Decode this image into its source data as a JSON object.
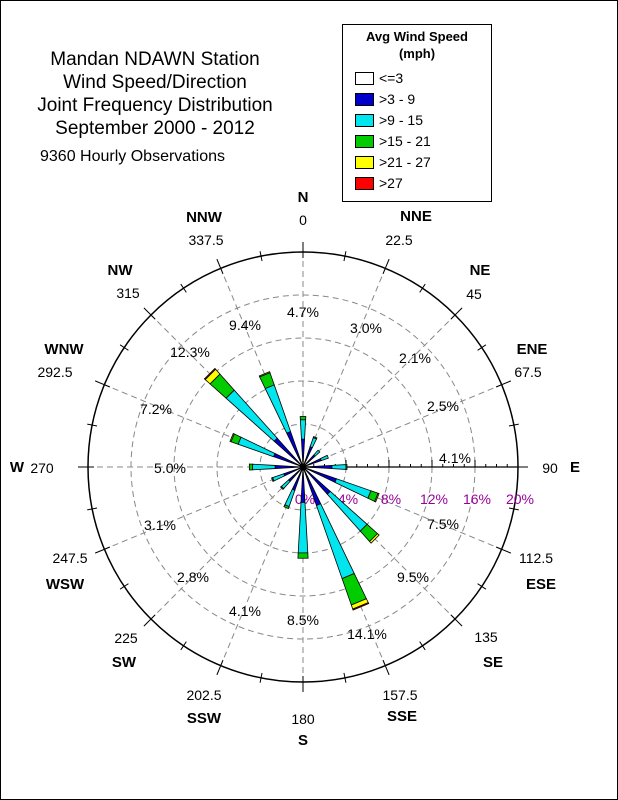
{
  "chart_data": {
    "type": "polar-bar (wind rose)",
    "title_lines": [
      "Mandan NDAWN Station",
      "Wind Speed/Direction",
      "Joint Frequency Distribution",
      "September 2000 - 2012"
    ],
    "observations": "9360 Hourly Observations",
    "legend": {
      "title_line1": "Avg Wind Speed",
      "title_line2": "(mph)",
      "items": [
        {
          "label": "<=3",
          "color": "#ffffff"
        },
        {
          "label": ">3 - 9",
          "color": "#0000cc"
        },
        {
          "label": ">9 - 15",
          "color": "#00e5ee"
        },
        {
          "label": ">15 - 21",
          "color": "#00cc00"
        },
        {
          "label": ">21 - 27",
          "color": "#ffff00"
        },
        {
          "label": ">27",
          "color": "#ff0000"
        }
      ]
    },
    "radial_axis": {
      "ticks": [
        "0%",
        "4%",
        "8%",
        "12%",
        "16%",
        "20%"
      ],
      "max": 20,
      "tick_color": "#990099"
    },
    "directions": [
      {
        "name": "N",
        "angle": "0",
        "percent": "4.7%"
      },
      {
        "name": "NNE",
        "angle": "22.5",
        "percent": "3.0%"
      },
      {
        "name": "NE",
        "angle": "45",
        "percent": "2.1%"
      },
      {
        "name": "ENE",
        "angle": "67.5",
        "percent": "2.5%"
      },
      {
        "name": "E",
        "angle": "90",
        "percent": "4.1%"
      },
      {
        "name": "ESE",
        "angle": "112.5",
        "percent": "7.5%"
      },
      {
        "name": "SE",
        "angle": "135",
        "percent": "9.5%"
      },
      {
        "name": "SSE",
        "angle": "157.5",
        "percent": "14.1%"
      },
      {
        "name": "S",
        "angle": "180",
        "percent": "8.5%"
      },
      {
        "name": "SSW",
        "angle": "202.5",
        "percent": "4.1%"
      },
      {
        "name": "SW",
        "angle": "225",
        "percent": "2.8%"
      },
      {
        "name": "WSW",
        "angle": "247.5",
        "percent": "3.1%"
      },
      {
        "name": "W",
        "angle": "270",
        "percent": "5.0%"
      },
      {
        "name": "WNW",
        "angle": "292.5",
        "percent": "7.2%"
      },
      {
        "name": "NW",
        "angle": "315",
        "percent": "12.3%"
      },
      {
        "name": "NNW",
        "angle": "337.5",
        "percent": "9.4%"
      }
    ],
    "series": [
      {
        "name": "<=3",
        "values": [
          0.3,
          0.2,
          0.2,
          0.2,
          0.3,
          0.3,
          0.3,
          0.3,
          0.3,
          0.3,
          0.2,
          0.2,
          0.3,
          0.3,
          0.3,
          0.3
        ]
      },
      {
        "name": ">3 - 9",
        "values": [
          2.3,
          1.8,
          1.3,
          1.6,
          2.4,
          3.0,
          3.1,
          3.5,
          3.0,
          2.0,
          1.6,
          1.7,
          2.3,
          2.6,
          3.3,
          3.2
        ]
      },
      {
        "name": ">9 - 15",
        "values": [
          1.8,
          0.9,
          0.6,
          0.7,
          1.3,
          3.4,
          4.6,
          7.2,
          4.7,
          1.6,
          0.9,
          1.1,
          2.1,
          3.5,
          6.0,
          4.6
        ]
      },
      {
        "name": ">15 - 21",
        "values": [
          0.3,
          0.1,
          0.0,
          0.0,
          0.1,
          0.7,
          1.3,
          2.6,
          0.5,
          0.2,
          0.1,
          0.1,
          0.3,
          0.7,
          2.0,
          1.2
        ]
      },
      {
        "name": ">21 - 27",
        "values": [
          0.0,
          0.0,
          0.0,
          0.0,
          0.0,
          0.1,
          0.2,
          0.4,
          0.0,
          0.0,
          0.0,
          0.0,
          0.0,
          0.1,
          0.6,
          0.1
        ]
      },
      {
        "name": ">27",
        "values": [
          0.0,
          0.0,
          0.0,
          0.0,
          0.0,
          0.0,
          0.0,
          0.1,
          0.0,
          0.0,
          0.0,
          0.0,
          0.0,
          0.0,
          0.1,
          0.0
        ]
      }
    ]
  }
}
